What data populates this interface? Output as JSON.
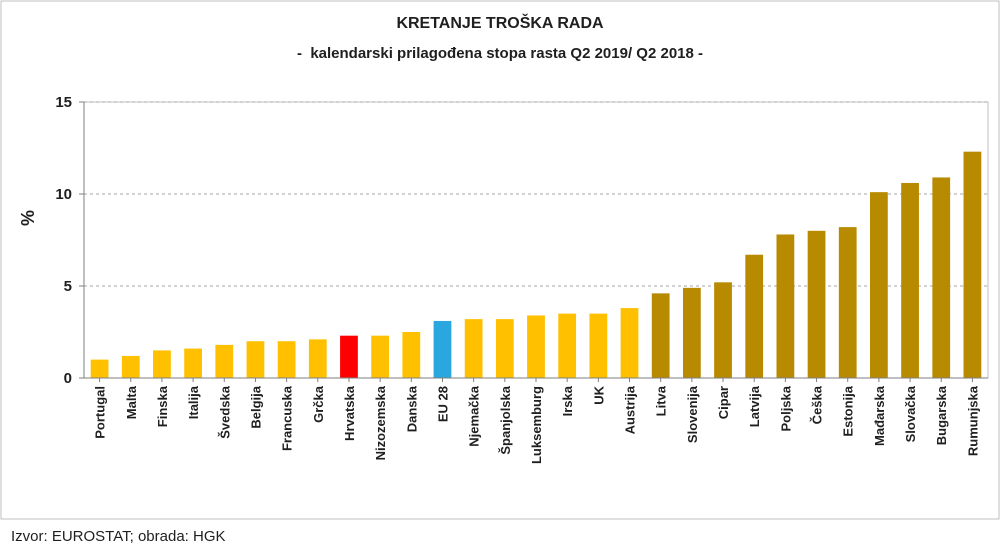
{
  "chart_data": {
    "type": "bar",
    "title": "KRETANJE TROŠKA RADA",
    "subtitle": "-  kalendarski prilagođena stopa rasta Q2 2019/ Q2 2018 -",
    "xlabel": "",
    "ylabel": "%",
    "ylim": [
      0,
      15
    ],
    "yticks": [
      0,
      5,
      10,
      15
    ],
    "grid": true,
    "legend": "none",
    "categories": [
      "Portugal",
      "Malta",
      "Finska",
      "Italija",
      "Švedska",
      "Belgija",
      "Francuska",
      "Grčka",
      "Hrvatska",
      "Nizozemska",
      "Danska",
      "EU 28",
      "Njemačka",
      "Španjolska",
      "Luksemburg",
      "Irska",
      "UK",
      "Austrija",
      "Litva",
      "Slovenija",
      "Cipar",
      "Latvija",
      "Poljska",
      "Češka",
      "Estonija",
      "Mađarska",
      "Slovačka",
      "Bugarska",
      "Rumunjska"
    ],
    "values": [
      1.0,
      1.2,
      1.5,
      1.6,
      1.8,
      2.0,
      2.0,
      2.1,
      2.3,
      2.3,
      2.5,
      3.1,
      3.2,
      3.2,
      3.4,
      3.5,
      3.5,
      3.8,
      4.6,
      4.9,
      5.2,
      6.7,
      7.8,
      8.0,
      8.2,
      10.1,
      10.6,
      10.9,
      12.3
    ],
    "bar_colors": [
      "#ffc000",
      "#ffc000",
      "#ffc000",
      "#ffc000",
      "#ffc000",
      "#ffc000",
      "#ffc000",
      "#ffc000",
      "#ff0000",
      "#ffc000",
      "#ffc000",
      "#2aa7df",
      "#ffc000",
      "#ffc000",
      "#ffc000",
      "#ffc000",
      "#ffc000",
      "#ffc000",
      "#b88a00",
      "#b88a00",
      "#b88a00",
      "#b88a00",
      "#b88a00",
      "#b88a00",
      "#b88a00",
      "#b88a00",
      "#b88a00",
      "#b88a00",
      "#b88a00"
    ],
    "gridline_color": "#a6a6a6",
    "axis_color": "#7f7f7f",
    "border_color": "#bfbfbf"
  },
  "source": "Izvor: EUROSTAT; obrada: HGK"
}
